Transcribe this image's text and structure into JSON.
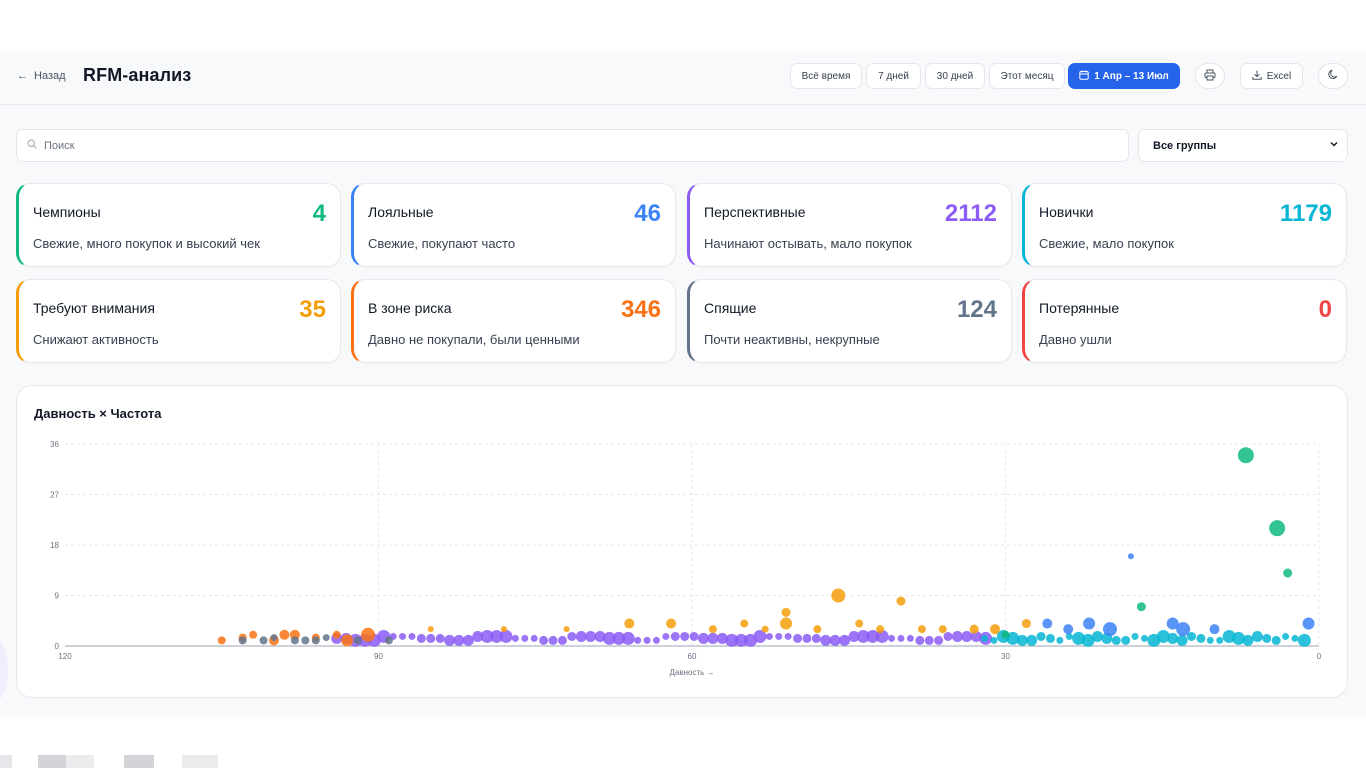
{
  "header": {
    "back_label": "Назад",
    "title": "RFM-анализ",
    "ranges": [
      "Всё время",
      "7 дней",
      "30 дней",
      "Этот месяц"
    ],
    "active_range": "1 Апр – 13 Июл",
    "excel_label": "Excel",
    "icons": {
      "back": "arrow-left-icon",
      "calendar": "calendar-icon",
      "print": "printer-icon",
      "download": "download-icon",
      "theme": "moon-icon"
    }
  },
  "filters": {
    "search_placeholder": "Поиск",
    "group_select": "Все группы"
  },
  "segments": [
    {
      "name": "Чемпионы",
      "count": "4",
      "desc": "Свежие, много покупок и высокий чек",
      "color": "#10b981"
    },
    {
      "name": "Лояльные",
      "count": "46",
      "desc": "Свежие, покупают часто",
      "color": "#3b82f6"
    },
    {
      "name": "Перспективные",
      "count": "2112",
      "desc": "Начинают остывать, мало покупок",
      "color": "#8b5cf6"
    },
    {
      "name": "Новички",
      "count": "1179",
      "desc": "Свежие, мало покупок",
      "color": "#06b6d4"
    },
    {
      "name": "Требуют внимания",
      "count": "35",
      "desc": "Снижают активность",
      "color": "#f59e0b"
    },
    {
      "name": "В зоне риска",
      "count": "346",
      "desc": "Давно не покупали, были ценными",
      "color": "#f97316"
    },
    {
      "name": "Спящие",
      "count": "124",
      "desc": "Почти неактивны, некрупные",
      "color": "#64748b"
    },
    {
      "name": "Потерянные",
      "count": "0",
      "desc": "Давно ушли",
      "color": "#ef4444"
    }
  ],
  "chart_data": {
    "type": "scatter",
    "title": "Давность × Частота",
    "xlabel": "Давность →",
    "ylabel": "",
    "xlim": [
      120,
      0
    ],
    "ylim": [
      0,
      36
    ],
    "x_ticks": [
      "120",
      "90",
      "60",
      "30",
      "0"
    ],
    "y_ticks": [
      "0",
      "9",
      "18",
      "27",
      "36"
    ],
    "grid": true,
    "series": [
      {
        "color": "#10b981",
        "points": [
          [
            7,
            34,
            8
          ],
          [
            4,
            21,
            8
          ],
          [
            3,
            13,
            4.5
          ],
          [
            17,
            7,
            4.5
          ],
          [
            30,
            2,
            4
          ]
        ]
      },
      {
        "color": "#3b82f6",
        "points": [
          [
            18,
            16,
            3
          ],
          [
            14,
            4,
            6
          ],
          [
            13,
            3,
            7
          ],
          [
            22,
            4,
            6
          ],
          [
            24,
            3,
            5
          ],
          [
            10,
            3,
            5
          ],
          [
            1,
            4,
            6
          ],
          [
            20,
            3,
            7
          ],
          [
            26,
            4,
            5
          ]
        ]
      },
      {
        "color": "#f59e0b",
        "points": [
          [
            46,
            9,
            7
          ],
          [
            40,
            8,
            4.5
          ],
          [
            51,
            6,
            4.5
          ],
          [
            51,
            4,
            6
          ],
          [
            55,
            4,
            4
          ],
          [
            44,
            4,
            4
          ],
          [
            62,
            4,
            5
          ],
          [
            66,
            4,
            5
          ],
          [
            33,
            3,
            4.5
          ],
          [
            36,
            3,
            4
          ],
          [
            85,
            3,
            3
          ],
          [
            72,
            3,
            3
          ],
          [
            58,
            3,
            4
          ],
          [
            28,
            4,
            4.5
          ],
          [
            31,
            3,
            5
          ],
          [
            78,
            3,
            3
          ],
          [
            48,
            3,
            4
          ],
          [
            53,
            3,
            3.5
          ],
          [
            42,
            3,
            4
          ],
          [
            38,
            3,
            4
          ]
        ]
      },
      {
        "color": "#f97316",
        "points": [
          [
            91,
            2,
            7
          ],
          [
            93,
            1,
            6
          ],
          [
            96,
            1.5,
            4
          ],
          [
            100,
            1,
            5
          ],
          [
            103,
            1.5,
            4
          ],
          [
            98,
            2,
            5
          ],
          [
            105,
            1,
            4
          ],
          [
            94,
            2,
            4
          ],
          [
            102,
            2,
            4
          ],
          [
            99,
            2,
            5
          ]
        ]
      },
      {
        "color": "#64748b",
        "points": [
          [
            101,
            1,
            4
          ],
          [
            98,
            1,
            4
          ],
          [
            96,
            1,
            4
          ],
          [
            92,
            1,
            4
          ],
          [
            89,
            1,
            4
          ],
          [
            103,
            1,
            4
          ],
          [
            100,
            1.5,
            3.5
          ],
          [
            95,
            1.5,
            3.5
          ],
          [
            97,
            1,
            4
          ]
        ]
      }
    ]
  }
}
